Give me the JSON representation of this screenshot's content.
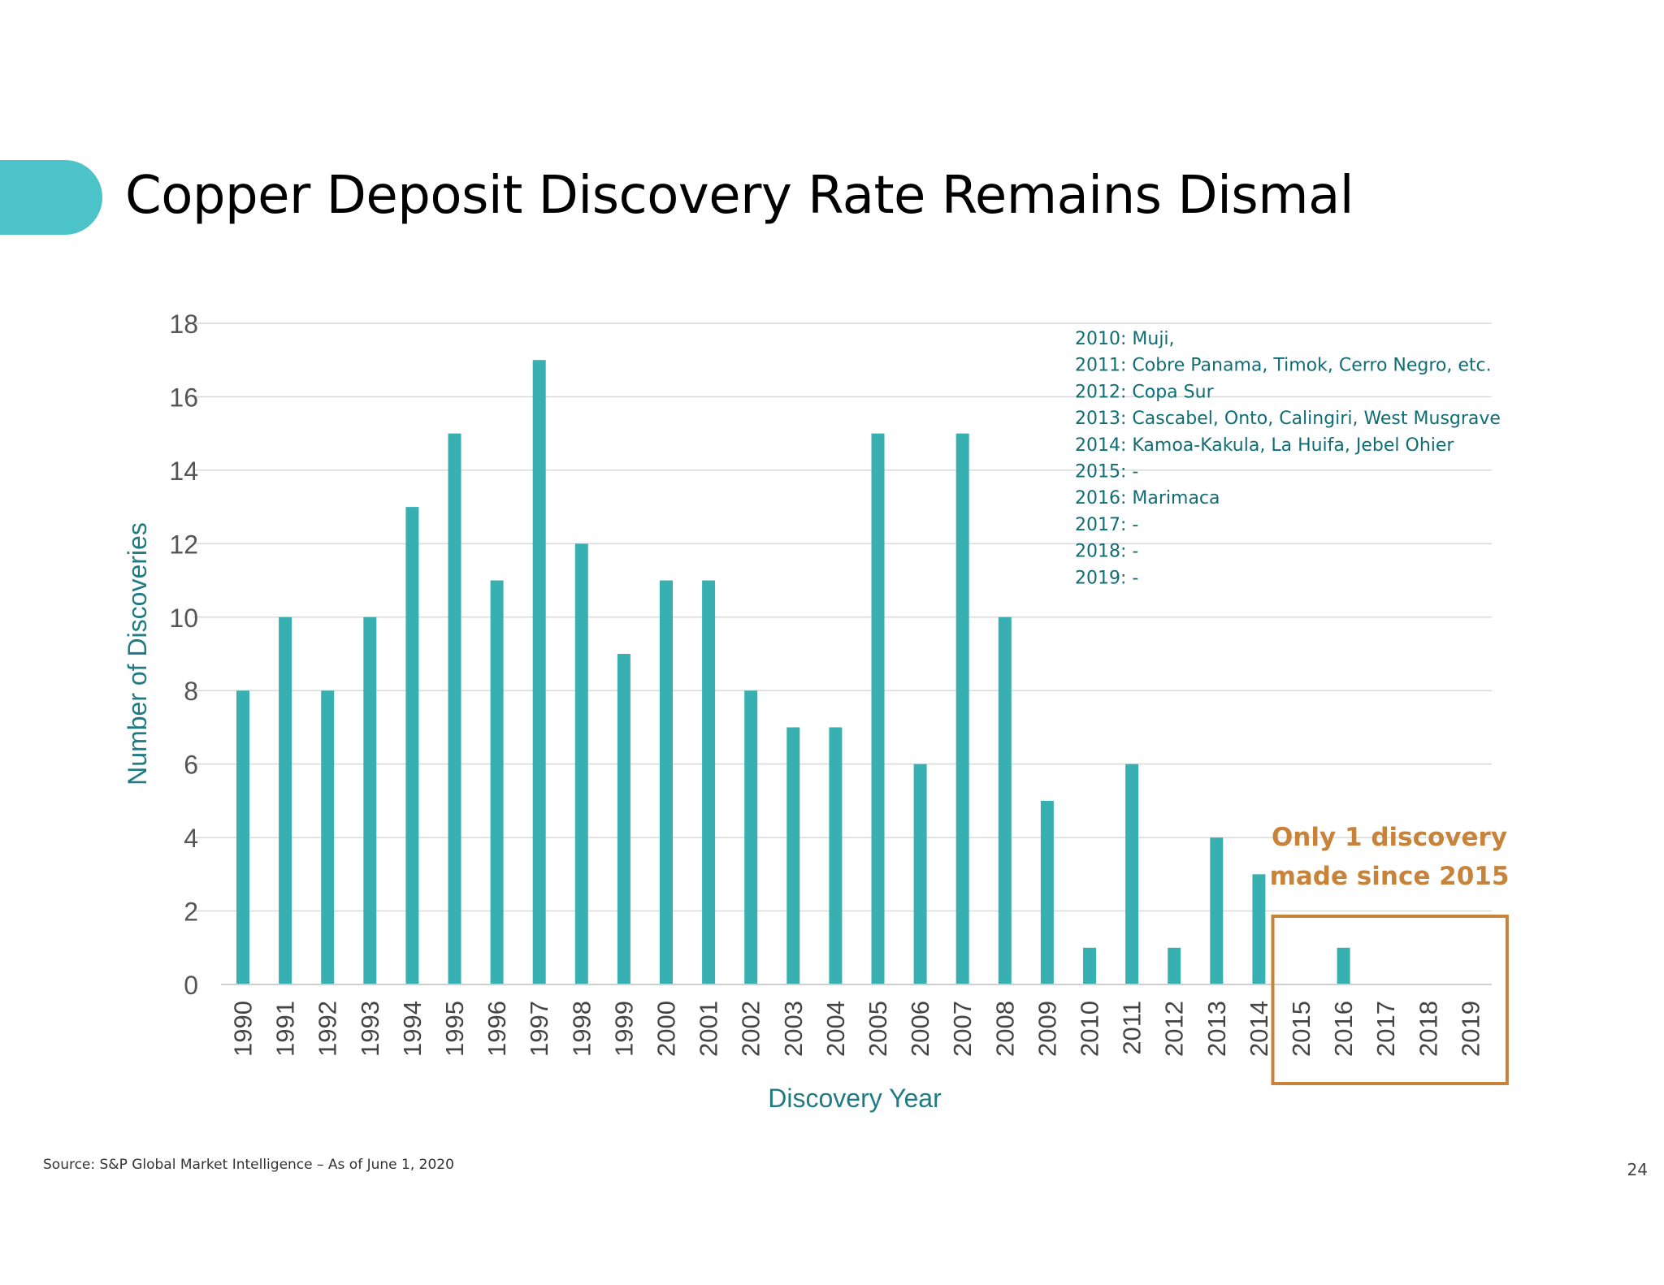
{
  "slide": {
    "title": "Copper Deposit Discovery Rate Remains Dismal",
    "source": "Source: S&P Global Market Intelligence – As of June 1, 2020",
    "page_number": "24"
  },
  "colors": {
    "bar": "#38b0b2",
    "axis_label": "#1f7a82",
    "annotation_list": "#0f6d74",
    "callout": "#c8833a",
    "tab": "#4cc3c8"
  },
  "chart_data": {
    "type": "bar",
    "title": "",
    "xlabel": "Discovery Year",
    "ylabel": "Number of Discoveries",
    "ylim": [
      0,
      18
    ],
    "yticks": [
      0,
      2,
      4,
      6,
      8,
      10,
      12,
      14,
      16,
      18
    ],
    "grid": true,
    "categories": [
      "1990",
      "1991",
      "1992",
      "1993",
      "1994",
      "1995",
      "1996",
      "1997",
      "1998",
      "1999",
      "2000",
      "2001",
      "2002",
      "2003",
      "2004",
      "2005",
      "2006",
      "2007",
      "2008",
      "2009",
      "2010",
      "2011",
      "2012",
      "2013",
      "2014",
      "2015",
      "2016",
      "2017",
      "2018",
      "2019"
    ],
    "values": [
      8,
      10,
      8,
      10,
      13,
      15,
      11,
      17,
      12,
      9,
      11,
      11,
      8,
      7,
      7,
      15,
      6,
      15,
      10,
      5,
      1,
      6,
      1,
      4,
      3,
      0,
      1,
      0,
      0,
      0
    ],
    "annotation_list": [
      "2010: Muji,",
      "2011: Cobre Panama, Timok, Cerro Negro, etc.",
      "2012: Copa Sur",
      "2013: Cascabel, Onto, Calingiri, West Musgrave",
      "2014: Kamoa-Kakula, La Huifa, Jebel Ohier",
      "2015: -",
      "2016: Marimaca",
      "2017: -",
      "2018: -",
      "2019: -"
    ],
    "callout": {
      "lines": [
        "Only 1 discovery",
        "made since 2015"
      ],
      "highlight_categories": [
        "2015",
        "2019"
      ]
    }
  }
}
